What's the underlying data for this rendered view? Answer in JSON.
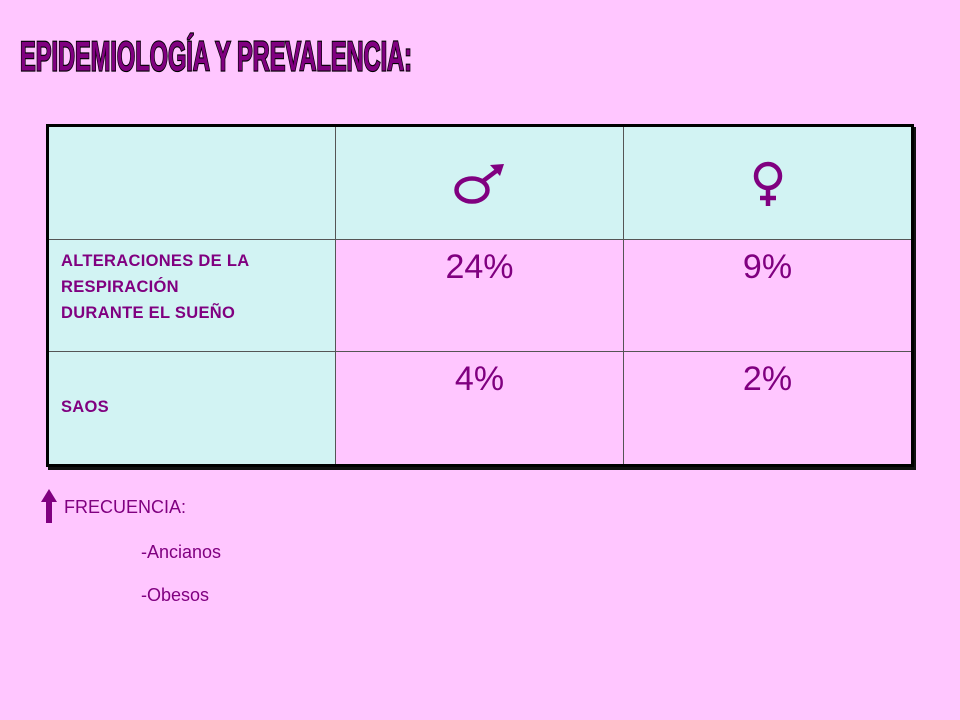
{
  "title": "EPIDEMIOLOGÍA Y PREVALENCIA:",
  "colors": {
    "background": "#ffc6ff",
    "header_fill": "#d2f3f3",
    "text": "#800080"
  },
  "table": {
    "headers": [
      {
        "icon": "male-symbol-icon"
      },
      {
        "icon": "female-symbol-icon"
      }
    ],
    "rows": [
      {
        "label_lines": [
          "ALTERACIONES DE LA",
          "RESPIRACIÓN",
          "DURANTE EL SUEÑO"
        ],
        "male": "24%",
        "female": "9%"
      },
      {
        "label_lines": [
          "SAOS"
        ],
        "male": "4%",
        "female": "2%"
      }
    ]
  },
  "frequency": {
    "icon": "up-arrow-icon",
    "label": "FRECUENCIA:",
    "items": [
      "-Ancianos",
      "-Obesos"
    ]
  }
}
